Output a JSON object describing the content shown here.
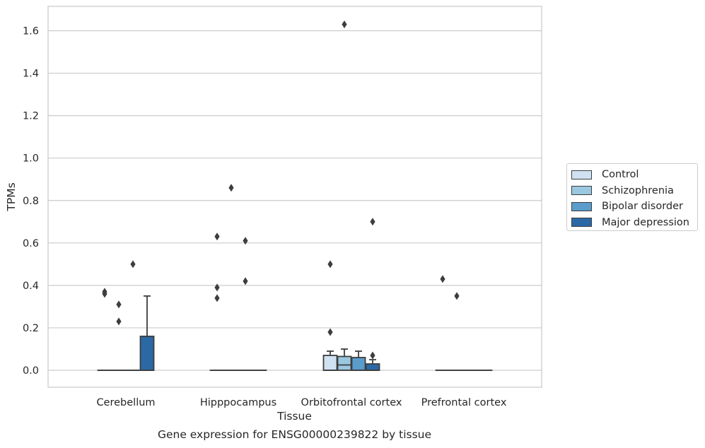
{
  "chart_data": {
    "type": "box",
    "ylabel": "TPMs",
    "xlabel": "Tissue",
    "caption": "Gene expression for ENSG00000239822 by tissue",
    "ylim": [
      -0.08,
      1.71
    ],
    "yticks": [
      "0.0",
      "0.2",
      "0.4",
      "0.6",
      "0.8",
      "1.0",
      "1.2",
      "1.4",
      "1.6"
    ],
    "grid": true,
    "legend_position": "right",
    "categories": [
      "Cerebellum",
      "Hipppocampus",
      "Orbitofrontal cortex",
      "Prefrontal cortex"
    ],
    "series": [
      {
        "name": "Control",
        "color": "#d0e1f2",
        "boxes": [
          {
            "q1": 0,
            "median": 0,
            "q3": 0,
            "whisker_low": 0,
            "whisker_high": 0,
            "outliers": [
              0.36,
              0.37
            ]
          },
          {
            "q1": 0,
            "median": 0,
            "q3": 0,
            "whisker_low": 0,
            "whisker_high": 0,
            "outliers": [
              0.34,
              0.39,
              0.63
            ]
          },
          {
            "q1": 0,
            "median": 0,
            "q3": 0.07,
            "whisker_low": 0,
            "whisker_high": 0.09,
            "outliers": [
              0.18,
              0.5
            ]
          },
          {
            "q1": 0,
            "median": 0,
            "q3": 0,
            "whisker_low": 0,
            "whisker_high": 0,
            "outliers": [
              0.43
            ]
          }
        ]
      },
      {
        "name": "Schizophrenia",
        "color": "#9ac8e0",
        "boxes": [
          {
            "q1": 0,
            "median": 0,
            "q3": 0,
            "whisker_low": 0,
            "whisker_high": 0,
            "outliers": [
              0.23,
              0.31
            ]
          },
          {
            "q1": 0,
            "median": 0,
            "q3": 0,
            "whisker_low": 0,
            "whisker_high": 0,
            "outliers": [
              0.86
            ]
          },
          {
            "q1": 0,
            "median": 0.025,
            "q3": 0.065,
            "whisker_low": 0,
            "whisker_high": 0.1,
            "outliers": [
              1.63
            ]
          },
          {
            "q1": 0,
            "median": 0,
            "q3": 0,
            "whisker_low": 0,
            "whisker_high": 0,
            "outliers": [
              0.35
            ]
          }
        ]
      },
      {
        "name": "Bipolar disorder",
        "color": "#5a9dcc",
        "boxes": [
          {
            "q1": 0,
            "median": 0,
            "q3": 0,
            "whisker_low": 0,
            "whisker_high": 0,
            "outliers": [
              0.5
            ]
          },
          {
            "q1": 0,
            "median": 0,
            "q3": 0,
            "whisker_low": 0,
            "whisker_high": 0,
            "outliers": [
              0.42,
              0.61
            ]
          },
          {
            "q1": 0,
            "median": 0,
            "q3": 0.06,
            "whisker_low": 0,
            "whisker_high": 0.09,
            "outliers": []
          },
          {
            "q1": 0,
            "median": 0,
            "q3": 0,
            "whisker_low": 0,
            "whisker_high": 0,
            "outliers": []
          }
        ]
      },
      {
        "name": "Major depression",
        "color": "#2b69a5",
        "boxes": [
          {
            "q1": 0,
            "median": 0,
            "q3": 0.16,
            "whisker_low": 0,
            "whisker_high": 0.35,
            "outliers": []
          },
          {
            "q1": 0,
            "median": 0,
            "q3": 0,
            "whisker_low": 0,
            "whisker_high": 0,
            "outliers": []
          },
          {
            "q1": 0,
            "median": 0,
            "q3": 0.03,
            "whisker_low": 0,
            "whisker_high": 0.05,
            "outliers": [
              0.07,
              0.7
            ]
          },
          {
            "q1": 0,
            "median": 0,
            "q3": 0,
            "whisker_low": 0,
            "whisker_high": 0,
            "outliers": []
          }
        ]
      }
    ]
  }
}
